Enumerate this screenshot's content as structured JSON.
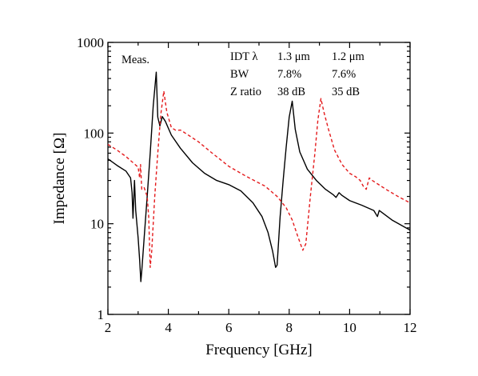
{
  "chart_data": {
    "type": "line",
    "xlabel": "Frequency [GHz]",
    "ylabel": "Impedance [Ω]",
    "xlim": [
      2,
      12
    ],
    "ylim": [
      1,
      1000
    ],
    "yscale": "log",
    "grid": false,
    "legend": "none",
    "x_ticks": [
      "2",
      "4",
      "6",
      "8",
      "10",
      "12"
    ],
    "y_ticks": [
      "1",
      "10",
      "100",
      "1000"
    ],
    "annotations": {
      "measurement_label": "Meas.",
      "table": {
        "headers": [
          "IDT λ",
          "1.3 μm",
          "1.2 μm"
        ],
        "rows": [
          [
            "BW",
            "7.8%",
            "7.6%"
          ],
          [
            "Z ratio",
            "38 dB",
            "35 dB"
          ]
        ]
      }
    },
    "series": [
      {
        "color": "#000000",
        "style": "solid",
        "points": [
          [
            2.0,
            52
          ],
          [
            2.3,
            44
          ],
          [
            2.6,
            38
          ],
          [
            2.75,
            32
          ],
          [
            2.8,
            22
          ],
          [
            2.83,
            11.5
          ],
          [
            2.88,
            30
          ],
          [
            2.92,
            14
          ],
          [
            3.0,
            7
          ],
          [
            3.05,
            4
          ],
          [
            3.09,
            2.3
          ],
          [
            3.12,
            3
          ],
          [
            3.2,
            7
          ],
          [
            3.3,
            20
          ],
          [
            3.4,
            60
          ],
          [
            3.5,
            200
          ],
          [
            3.6,
            470
          ],
          [
            3.65,
            150
          ],
          [
            3.72,
            120
          ],
          [
            3.8,
            152
          ],
          [
            3.9,
            135
          ],
          [
            4.1,
            95
          ],
          [
            4.4,
            68
          ],
          [
            4.8,
            47
          ],
          [
            5.2,
            36
          ],
          [
            5.6,
            30
          ],
          [
            6.0,
            27
          ],
          [
            6.4,
            23
          ],
          [
            6.8,
            17
          ],
          [
            7.1,
            12
          ],
          [
            7.3,
            8
          ],
          [
            7.45,
            5
          ],
          [
            7.55,
            3.3
          ],
          [
            7.6,
            3.5
          ],
          [
            7.7,
            12
          ],
          [
            7.8,
            30
          ],
          [
            7.9,
            70
          ],
          [
            8.0,
            150
          ],
          [
            8.1,
            225
          ],
          [
            8.2,
            110
          ],
          [
            8.35,
            62
          ],
          [
            8.6,
            40
          ],
          [
            8.9,
            30
          ],
          [
            9.2,
            24
          ],
          [
            9.45,
            21
          ],
          [
            9.55,
            19.5
          ],
          [
            9.65,
            22
          ],
          [
            9.75,
            20.5
          ],
          [
            10.0,
            18
          ],
          [
            10.4,
            16
          ],
          [
            10.8,
            14
          ],
          [
            10.92,
            12
          ],
          [
            10.98,
            14
          ],
          [
            11.4,
            11
          ],
          [
            12.0,
            8.5
          ]
        ]
      },
      {
        "color": "#e41a1c",
        "style": "dashed",
        "points": [
          [
            2.0,
            75
          ],
          [
            2.3,
            65
          ],
          [
            2.6,
            55
          ],
          [
            2.9,
            45
          ],
          [
            3.0,
            42
          ],
          [
            3.05,
            32
          ],
          [
            3.08,
            45
          ],
          [
            3.12,
            24
          ],
          [
            3.2,
            25
          ],
          [
            3.3,
            20
          ],
          [
            3.35,
            12
          ],
          [
            3.4,
            3.3
          ],
          [
            3.45,
            5
          ],
          [
            3.55,
            20
          ],
          [
            3.65,
            60
          ],
          [
            3.75,
            160
          ],
          [
            3.85,
            290
          ],
          [
            3.95,
            170
          ],
          [
            4.1,
            115
          ],
          [
            4.25,
            107
          ],
          [
            4.4,
            108
          ],
          [
            4.6,
            98
          ],
          [
            5.0,
            80
          ],
          [
            5.4,
            62
          ],
          [
            6.0,
            43
          ],
          [
            6.6,
            33
          ],
          [
            7.2,
            26
          ],
          [
            7.6,
            20
          ],
          [
            7.9,
            15
          ],
          [
            8.1,
            11
          ],
          [
            8.3,
            7
          ],
          [
            8.45,
            5.1
          ],
          [
            8.55,
            6
          ],
          [
            8.7,
            20
          ],
          [
            8.85,
            60
          ],
          [
            8.95,
            140
          ],
          [
            9.05,
            240
          ],
          [
            9.15,
            170
          ],
          [
            9.3,
            110
          ],
          [
            9.5,
            65
          ],
          [
            9.75,
            45
          ],
          [
            10.0,
            36
          ],
          [
            10.2,
            33
          ],
          [
            10.35,
            30
          ],
          [
            10.45,
            26
          ],
          [
            10.55,
            24
          ],
          [
            10.65,
            32
          ],
          [
            10.75,
            30
          ],
          [
            11.2,
            24
          ],
          [
            11.6,
            20
          ],
          [
            12.0,
            17
          ]
        ]
      }
    ]
  }
}
